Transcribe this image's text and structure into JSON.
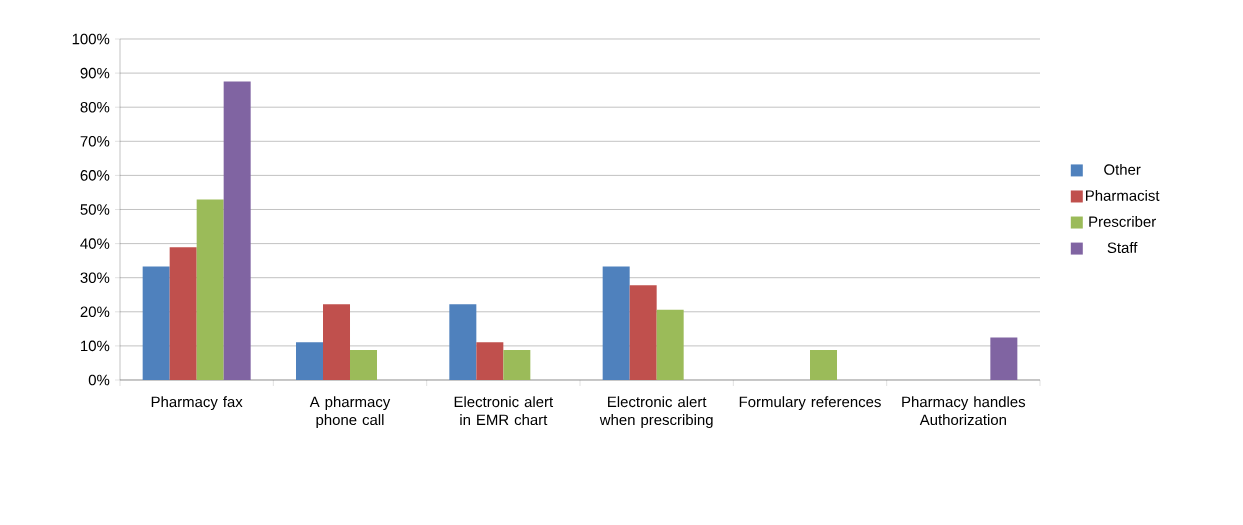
{
  "chart_data": {
    "type": "bar",
    "categories": [
      "Pharmacy fax",
      "A pharmacy phone call",
      "Electronic alert in EMR chart",
      "Electronic alert when prescribing",
      "Formulary references",
      "Pharmacy handles Authorization"
    ],
    "series": [
      {
        "name": "Other",
        "color": "#4f81bd",
        "values": [
          33.3,
          11.1,
          22.2,
          33.3,
          0,
          0
        ]
      },
      {
        "name": "Pharmacist",
        "color": "#c0504d",
        "values": [
          38.9,
          22.2,
          11.1,
          27.8,
          0,
          0
        ]
      },
      {
        "name": "Prescriber",
        "color": "#9bbb59",
        "values": [
          52.9,
          8.8,
          8.8,
          20.6,
          8.8,
          0
        ]
      },
      {
        "name": "Staff",
        "color": "#8064a2",
        "values": [
          87.5,
          0,
          0,
          0,
          0,
          12.5
        ]
      }
    ],
    "ylim": [
      0,
      100
    ],
    "yticks": [
      {
        "value": 0,
        "label": "0%"
      },
      {
        "value": 10,
        "label": "10%"
      },
      {
        "value": 20,
        "label": "20%"
      },
      {
        "value": 30,
        "label": "30%"
      },
      {
        "value": 40,
        "label": "40%"
      },
      {
        "value": 50,
        "label": "50%"
      },
      {
        "value": 60,
        "label": "60%"
      },
      {
        "value": 70,
        "label": "70%"
      },
      {
        "value": 80,
        "label": "80%"
      },
      {
        "value": 90,
        "label": "90%"
      },
      {
        "value": 100,
        "label": "100%"
      }
    ],
    "grid": "y",
    "legend": "right"
  }
}
